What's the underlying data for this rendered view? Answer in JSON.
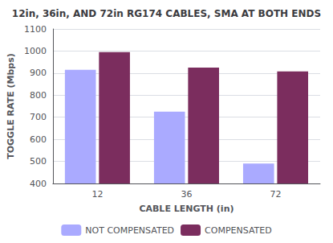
{
  "chart_data": {
    "type": "bar",
    "title": "12in, 36in, AND 72in RG174 CABLES, SMA AT BOTH ENDS",
    "xlabel": "CABLE LENGTH (in)",
    "ylabel": "TOGGLE RATE (Mbps)",
    "categories": [
      "12",
      "36",
      "72"
    ],
    "series": [
      {
        "name": "NOT COMPENSATED",
        "color": "#aaaaff",
        "values": [
          915,
          725,
          490
        ]
      },
      {
        "name": "COMPENSATED",
        "color": "#7b2d5e",
        "values": [
          995,
          925,
          908
        ]
      }
    ],
    "ylim": [
      400,
      1100
    ],
    "yticks": [
      400,
      500,
      600,
      700,
      800,
      900,
      1000,
      1100
    ],
    "grid": true,
    "legend": "bottom"
  }
}
